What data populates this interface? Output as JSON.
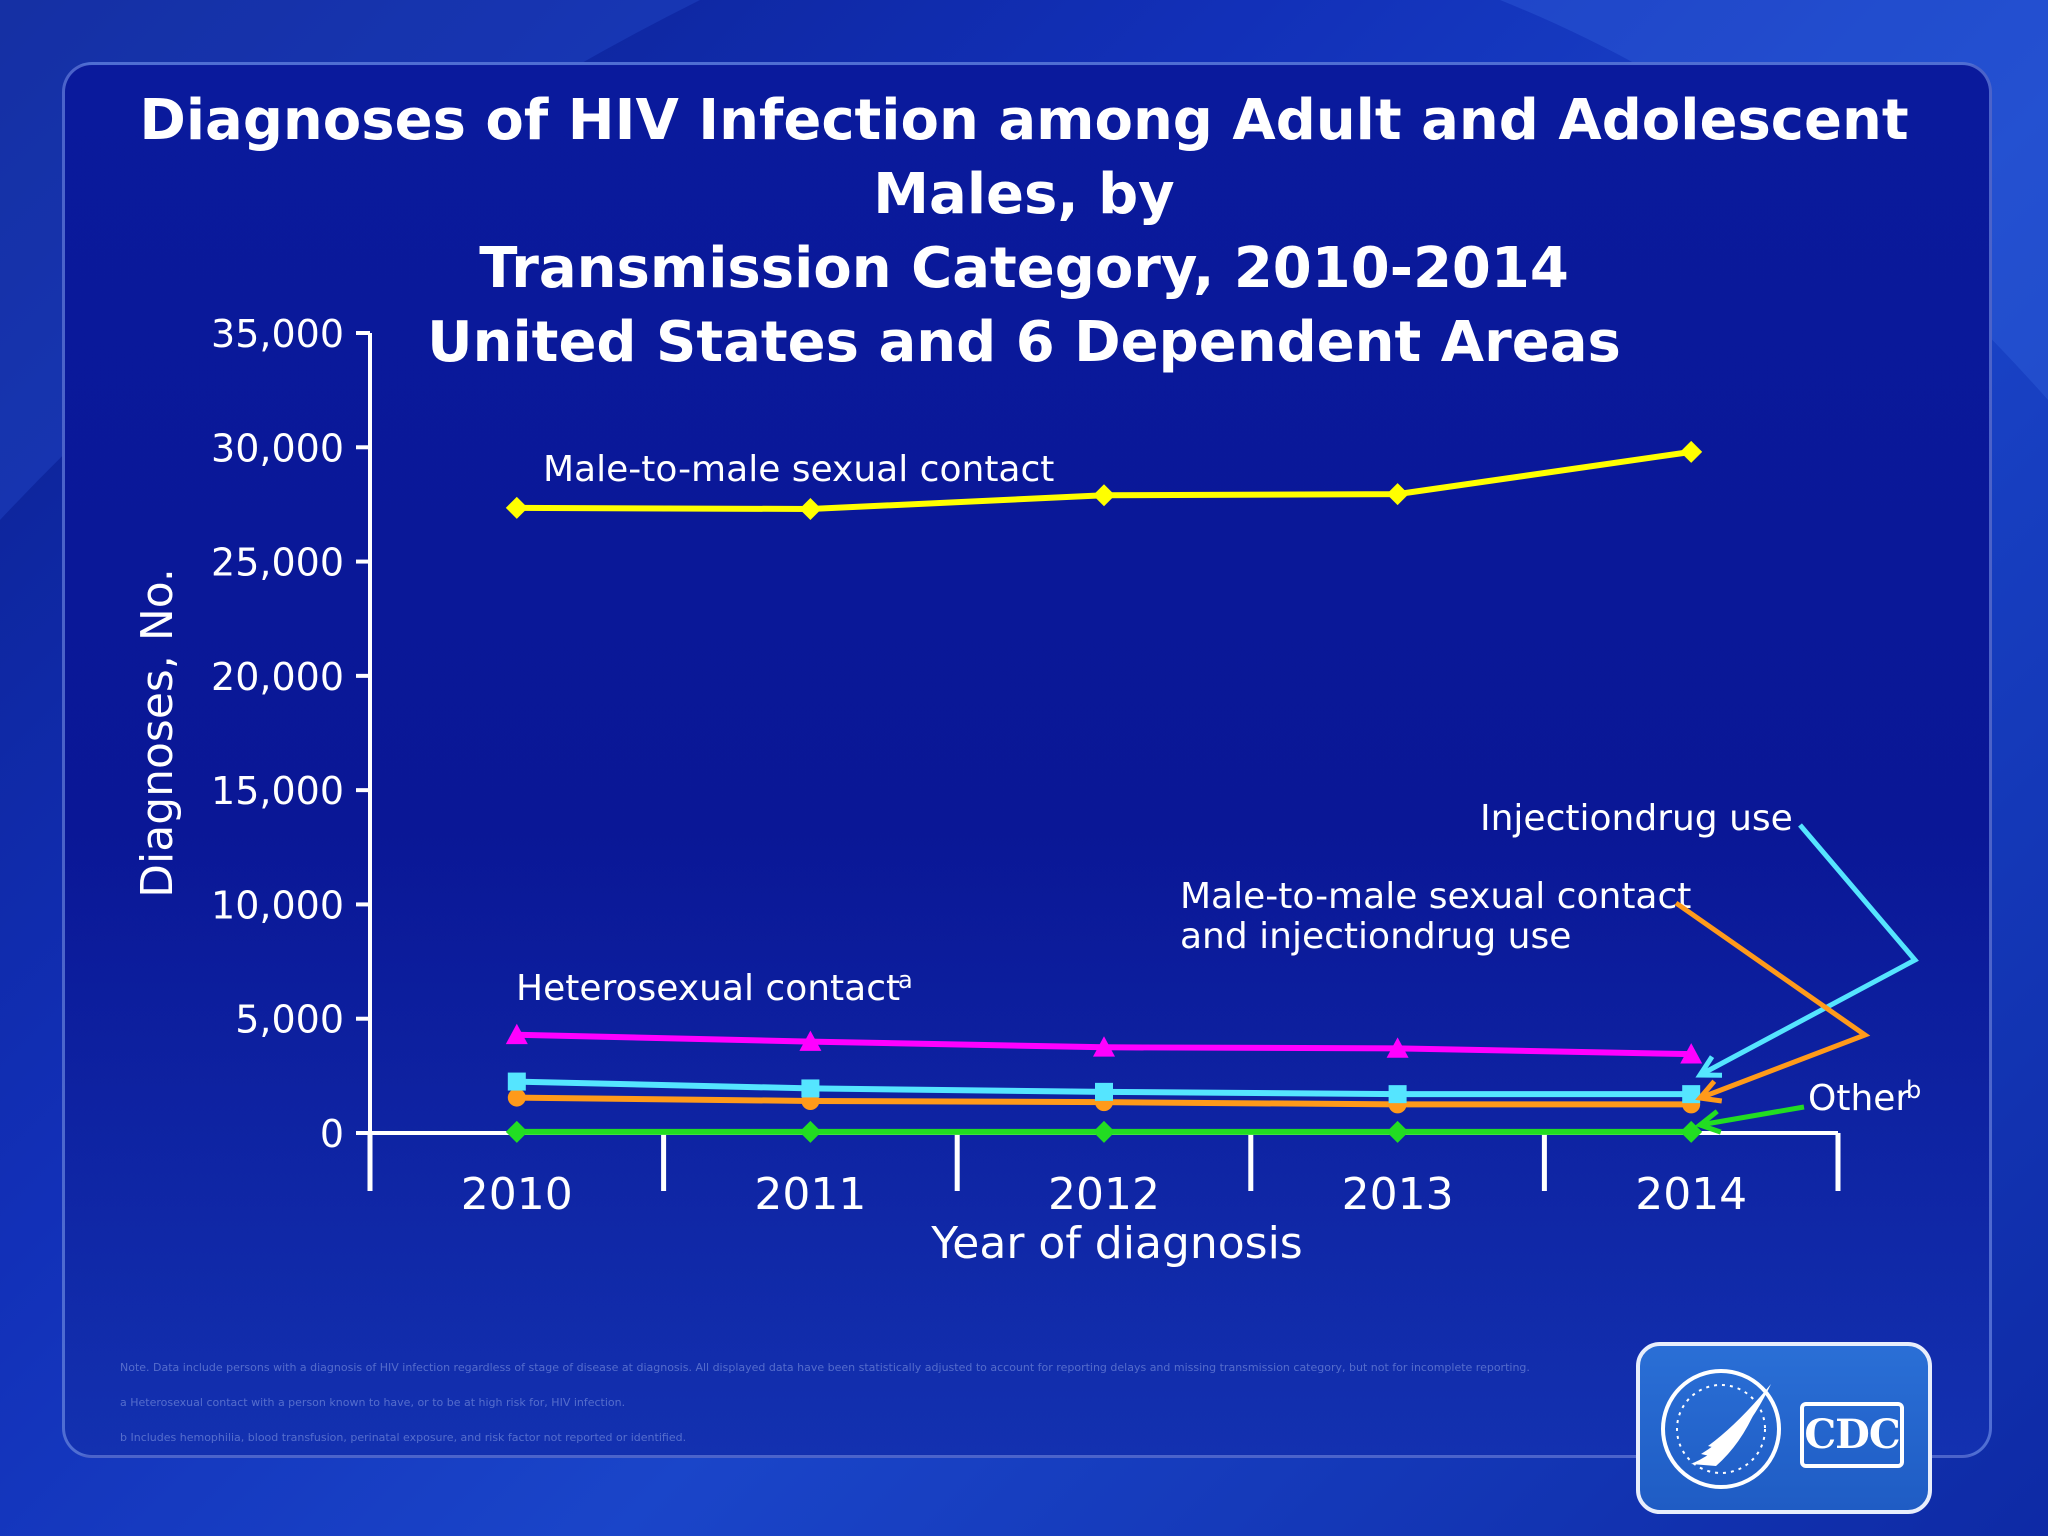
{
  "title_lines": [
    "Diagnoses of HIV Infection among Adult and Adolescent Males, by",
    "Transmission Category, 2010-2014",
    "United States and 6 Dependent Areas"
  ],
  "footnotes": [
    "Note. Data include persons with a diagnosis of HIV infection regardless of stage of disease at diagnosis. All displayed data have been statistically adjusted to account for reporting delays and missing transmission category, but not for incomplete reporting.",
    "a Heterosexual contact with a person known to have, or to be at high risk for, HIV infection.",
    "b Includes hemophilia, blood transfusion, perinatal exposure, and risk factor not reported or identified."
  ],
  "logo": {
    "text": "CDC"
  },
  "colors": {
    "msm": "#ffff00",
    "heterosexual": "#ff00ff",
    "idu": "#55e5ff",
    "msm_idu": "#ff9a1a",
    "other": "#22dd22",
    "axis": "#ffffff"
  },
  "chart_data": {
    "type": "line",
    "title": "Diagnoses of HIV Infection among Adult and Adolescent Males, by Transmission Category, 2010-2014 United States and 6 Dependent Areas",
    "xlabel": "Year of diagnosis",
    "ylabel": "Diagnoses, No.",
    "ylim": [
      0,
      35000
    ],
    "yticks": [
      "0",
      "5,000",
      "10,000",
      "15,000",
      "20,000",
      "25,000",
      "30,000",
      "35,000"
    ],
    "categories": [
      "2010",
      "2011",
      "2012",
      "2013",
      "2014"
    ],
    "grid": false,
    "series": [
      {
        "name": "Male-to-male sexual contact",
        "marker": "diamond",
        "values": [
          27350,
          27300,
          27900,
          27950,
          29800
        ]
      },
      {
        "name": "Heterosexual  contact",
        "sup": "a",
        "marker": "triangle",
        "values": [
          4300,
          4000,
          3750,
          3700,
          3450
        ]
      },
      {
        "name": "Injection drug use",
        "name_display": "Injectiondrug use",
        "marker": "square",
        "values": [
          2250,
          1950,
          1800,
          1700,
          1700
        ]
      },
      {
        "name": "Male-to-male sexual contact and injection drug use",
        "name_lines": [
          "Male-to-male sexual contact",
          "and injectiondrug use"
        ],
        "marker": "circle",
        "values": [
          1550,
          1400,
          1350,
          1250,
          1250
        ]
      },
      {
        "name": "Other",
        "sup": "b",
        "marker": "diamond",
        "values": [
          50,
          50,
          50,
          50,
          50
        ]
      }
    ]
  }
}
